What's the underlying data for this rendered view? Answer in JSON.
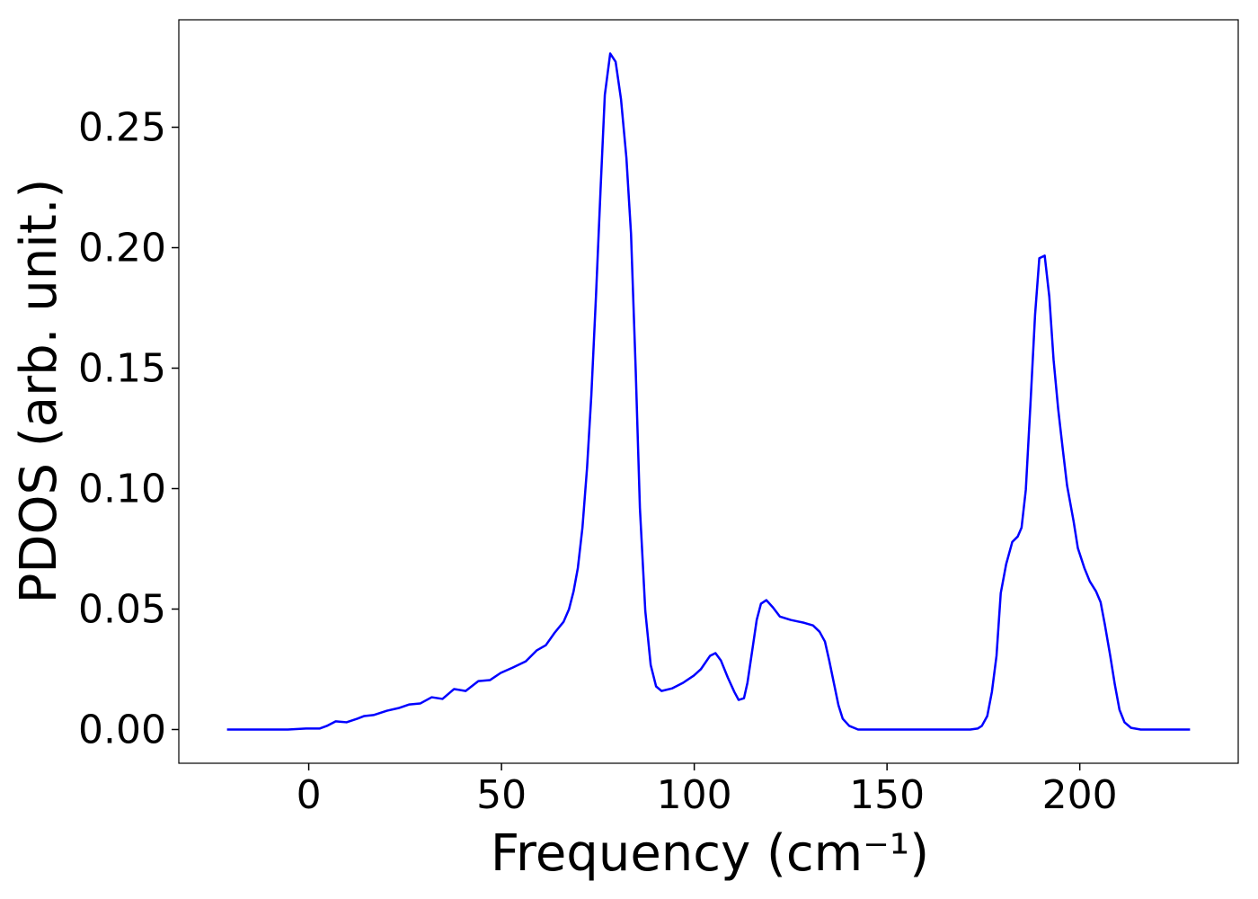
{
  "chart_data": {
    "type": "line",
    "x_label": "Frequency (cm⁻¹)",
    "y_label": "PDOS (arb. unit.)",
    "xlim": [
      -33.7,
      241.1
    ],
    "ylim": [
      -0.014,
      0.2946
    ],
    "xticks": [
      0,
      50,
      100,
      150,
      200
    ],
    "yticks": [
      {
        "value": 0,
        "label": "0.00"
      },
      0.05,
      {
        "value": 0.1,
        "label": "0.10"
      },
      0.15,
      {
        "value": 0.2,
        "label": "0.20"
      },
      0.25
    ],
    "grid": false,
    "series": [
      {
        "color": "#0000ff",
        "x": [
          -21.2,
          -5.4,
          -0.7,
          2.8,
          4.7,
          7.0,
          9.8,
          12.6,
          14.4,
          16.8,
          20.3,
          23.3,
          26.1,
          28.9,
          31.9,
          34.7,
          37.7,
          40.7,
          44.0,
          47.0,
          49.8,
          52.9,
          56.3,
          59.1,
          61.5,
          63.8,
          66.1,
          67.5,
          68.7,
          69.8,
          71.0,
          72.2,
          73.3,
          74.5,
          75.7,
          76.8,
          78.2,
          79.6,
          81.0,
          82.4,
          83.6,
          84.8,
          85.9,
          87.3,
          88.7,
          90.1,
          91.5,
          94.3,
          97.1,
          99.9,
          101.7,
          104.1,
          105.5,
          106.9,
          108.7,
          110.4,
          111.5,
          112.9,
          113.8,
          115.0,
          116.2,
          117.3,
          118.7,
          120.4,
          122.2,
          125.0,
          128.5,
          130.8,
          132.5,
          133.9,
          135.0,
          136.2,
          137.4,
          138.5,
          140.2,
          142.5,
          171.6,
          173.5,
          174.6,
          176.0,
          177.2,
          178.4,
          179.5,
          180.9,
          182.5,
          183.9,
          184.9,
          186.0,
          187.2,
          188.4,
          189.5,
          190.9,
          192.1,
          193.2,
          194.4,
          195.6,
          196.7,
          198.4,
          199.5,
          201.2,
          202.6,
          204.2,
          205.4,
          206.5,
          207.9,
          209.1,
          210.3,
          211.6,
          213.3,
          215.8,
          228.6
        ],
        "values": [
          0,
          0,
          0.0004,
          0.0004,
          0.0015,
          0.0034,
          0.003,
          0.0045,
          0.0056,
          0.006,
          0.0078,
          0.0089,
          0.0104,
          0.0108,
          0.0134,
          0.0127,
          0.0168,
          0.016,
          0.0201,
          0.0205,
          0.0235,
          0.0257,
          0.0283,
          0.0328,
          0.035,
          0.0402,
          0.0447,
          0.0499,
          0.0574,
          0.067,
          0.0838,
          0.1088,
          0.1386,
          0.1796,
          0.2243,
          0.2634,
          0.2806,
          0.2772,
          0.2616,
          0.2373,
          0.2057,
          0.1498,
          0.092,
          0.0492,
          0.0268,
          0.0179,
          0.016,
          0.0171,
          0.0194,
          0.0224,
          0.025,
          0.0306,
          0.0317,
          0.0287,
          0.0216,
          0.0156,
          0.0123,
          0.013,
          0.0194,
          0.0324,
          0.0455,
          0.0522,
          0.0537,
          0.0507,
          0.0469,
          0.0455,
          0.0443,
          0.0432,
          0.0406,
          0.0365,
          0.0287,
          0.0194,
          0.0101,
          0.0045,
          0.0015,
          0,
          0,
          0.0004,
          0.0015,
          0.0056,
          0.0156,
          0.0306,
          0.0566,
          0.0686,
          0.0779,
          0.0801,
          0.0838,
          0.0995,
          0.1349,
          0.1721,
          0.1956,
          0.1967,
          0.1796,
          0.1535,
          0.133,
          0.1162,
          0.1013,
          0.0864,
          0.0753,
          0.067,
          0.0615,
          0.0574,
          0.0529,
          0.0436,
          0.0306,
          0.0186,
          0.0082,
          0.003,
          0.0007,
          0,
          0
        ]
      }
    ]
  }
}
